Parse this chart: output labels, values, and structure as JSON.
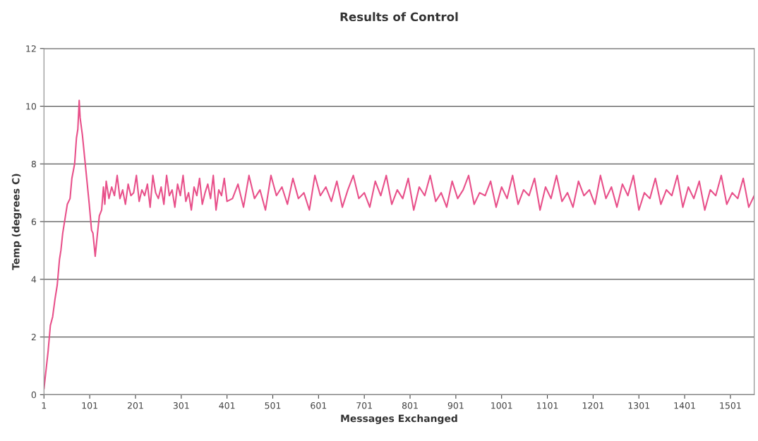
{
  "chart_data": {
    "type": "line",
    "title": "Results of Control",
    "xlabel": "Messages Exchanged",
    "ylabel": "Temp (degrees C)",
    "series": [
      {
        "color": "#e8508a",
        "x": [
          1,
          10,
          15,
          20,
          25,
          30,
          35,
          38,
          42,
          48,
          52,
          58,
          62,
          68,
          72,
          75,
          78,
          80,
          85,
          90,
          95,
          100,
          105,
          108,
          113,
          118,
          122,
          127,
          131,
          134,
          137,
          143,
          149,
          155,
          161,
          167,
          173,
          179,
          185,
          191,
          197,
          203,
          209,
          215,
          221,
          227,
          233,
          239,
          245,
          251,
          257,
          263,
          269,
          275,
          281,
          287,
          293,
          299,
          305,
          311,
          317,
          323,
          329,
          335,
          341,
          347,
          353,
          359,
          365,
          371,
          377,
          383,
          389,
          395,
          401,
          413,
          425,
          437,
          449,
          461,
          473,
          485,
          497,
          509,
          521,
          533,
          545,
          557,
          569,
          581,
          593,
          605,
          617,
          629,
          641,
          653,
          665,
          677,
          689,
          701,
          713,
          725,
          737,
          749,
          761,
          773,
          785,
          797,
          809,
          821,
          833,
          845,
          857,
          869,
          881,
          893,
          905,
          917,
          929,
          941,
          953,
          965,
          977,
          989,
          1001,
          1013,
          1025,
          1037,
          1049,
          1061,
          1073,
          1085,
          1097,
          1109,
          1121,
          1133,
          1145,
          1157,
          1169,
          1181,
          1193,
          1205,
          1217,
          1229,
          1241,
          1253,
          1265,
          1277,
          1289,
          1301,
          1313,
          1325,
          1337,
          1349,
          1361,
          1373,
          1385,
          1397,
          1409,
          1421,
          1433,
          1445,
          1457,
          1469,
          1481,
          1493,
          1505,
          1517,
          1529,
          1541,
          1553
        ],
        "values": [
          0.2,
          1.5,
          2.4,
          2.7,
          3.3,
          3.8,
          4.7,
          5.0,
          5.6,
          6.2,
          6.6,
          6.8,
          7.5,
          8.0,
          8.9,
          9.2,
          10.2,
          9.6,
          9.0,
          8.2,
          7.4,
          6.6,
          5.7,
          5.6,
          4.8,
          5.6,
          6.2,
          6.4,
          7.2,
          6.6,
          7.4,
          6.8,
          7.2,
          6.9,
          7.6,
          6.8,
          7.1,
          6.6,
          7.3,
          6.9,
          7.0,
          7.6,
          6.7,
          7.1,
          6.9,
          7.3,
          6.5,
          7.6,
          7.0,
          6.8,
          7.2,
          6.6,
          7.6,
          6.9,
          7.1,
          6.5,
          7.3,
          6.9,
          7.6,
          6.7,
          7.0,
          6.4,
          7.2,
          6.9,
          7.5,
          6.6,
          7.0,
          7.3,
          6.8,
          7.6,
          6.4,
          7.1,
          6.9,
          7.5,
          6.7,
          6.8,
          7.3,
          6.5,
          7.6,
          6.8,
          7.1,
          6.4,
          7.6,
          6.9,
          7.2,
          6.6,
          7.5,
          6.8,
          7.0,
          6.4,
          7.6,
          6.9,
          7.2,
          6.7,
          7.4,
          6.5,
          7.1,
          7.6,
          6.8,
          7.0,
          6.5,
          7.4,
          6.9,
          7.6,
          6.6,
          7.1,
          6.8,
          7.5,
          6.4,
          7.2,
          6.9,
          7.6,
          6.7,
          7.0,
          6.5,
          7.4,
          6.8,
          7.1,
          7.6,
          6.6,
          7.0,
          6.9,
          7.4,
          6.5,
          7.2,
          6.8,
          7.6,
          6.6,
          7.1,
          6.9,
          7.5,
          6.4,
          7.2,
          6.8,
          7.6,
          6.7,
          7.0,
          6.5,
          7.4,
          6.9,
          7.1,
          6.6,
          7.6,
          6.8,
          7.2,
          6.5,
          7.3,
          6.9,
          7.6,
          6.4,
          7.0,
          6.8,
          7.5,
          6.6,
          7.1,
          6.9,
          7.6,
          6.5,
          7.2,
          6.8,
          7.4,
          6.4,
          7.1,
          6.9,
          7.6,
          6.6,
          7.0,
          6.8,
          7.5,
          6.5,
          6.9
        ]
      }
    ],
    "xlim": [
      1,
      1553
    ],
    "xticks": [
      1,
      101,
      201,
      301,
      401,
      501,
      601,
      701,
      801,
      901,
      1001,
      1101,
      1201,
      1301,
      1401,
      1501
    ],
    "ylim": [
      0,
      12
    ],
    "yticks": [
      0,
      2,
      4,
      6,
      8,
      10,
      12
    ],
    "grid": "y",
    "legend": false
  }
}
